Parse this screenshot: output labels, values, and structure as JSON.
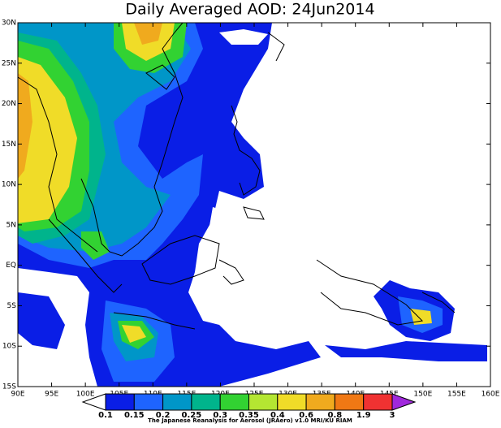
{
  "title": "Daily Averaged AOD: 24Jun2014",
  "lon_labels": [
    "90E",
    "95E",
    "100E",
    "105E",
    "110E",
    "115E",
    "120E",
    "125E",
    "130E",
    "135E",
    "140E",
    "145E",
    "150E",
    "155E",
    "160E"
  ],
  "lat_labels": [
    "30N",
    "25N",
    "20N",
    "15N",
    "10N",
    "5N",
    "EQ",
    "5S",
    "10S",
    "15S"
  ],
  "legend": {
    "levels": [
      0.1,
      0.15,
      0.2,
      0.25,
      0.3,
      0.35,
      0.4,
      0.6,
      0.8,
      1.9,
      3
    ],
    "colors": [
      "#ffffff",
      "#0a1ee6",
      "#1e64ff",
      "#0096c8",
      "#00b48c",
      "#32d232",
      "#b4e632",
      "#f0dc28",
      "#f0aa1e",
      "#f07814",
      "#f03232",
      "#a028dc"
    ]
  },
  "credit": "The Japanese Reanalysis for Aerosol (JRAero) v1.0 MRI/KU RIAM"
}
